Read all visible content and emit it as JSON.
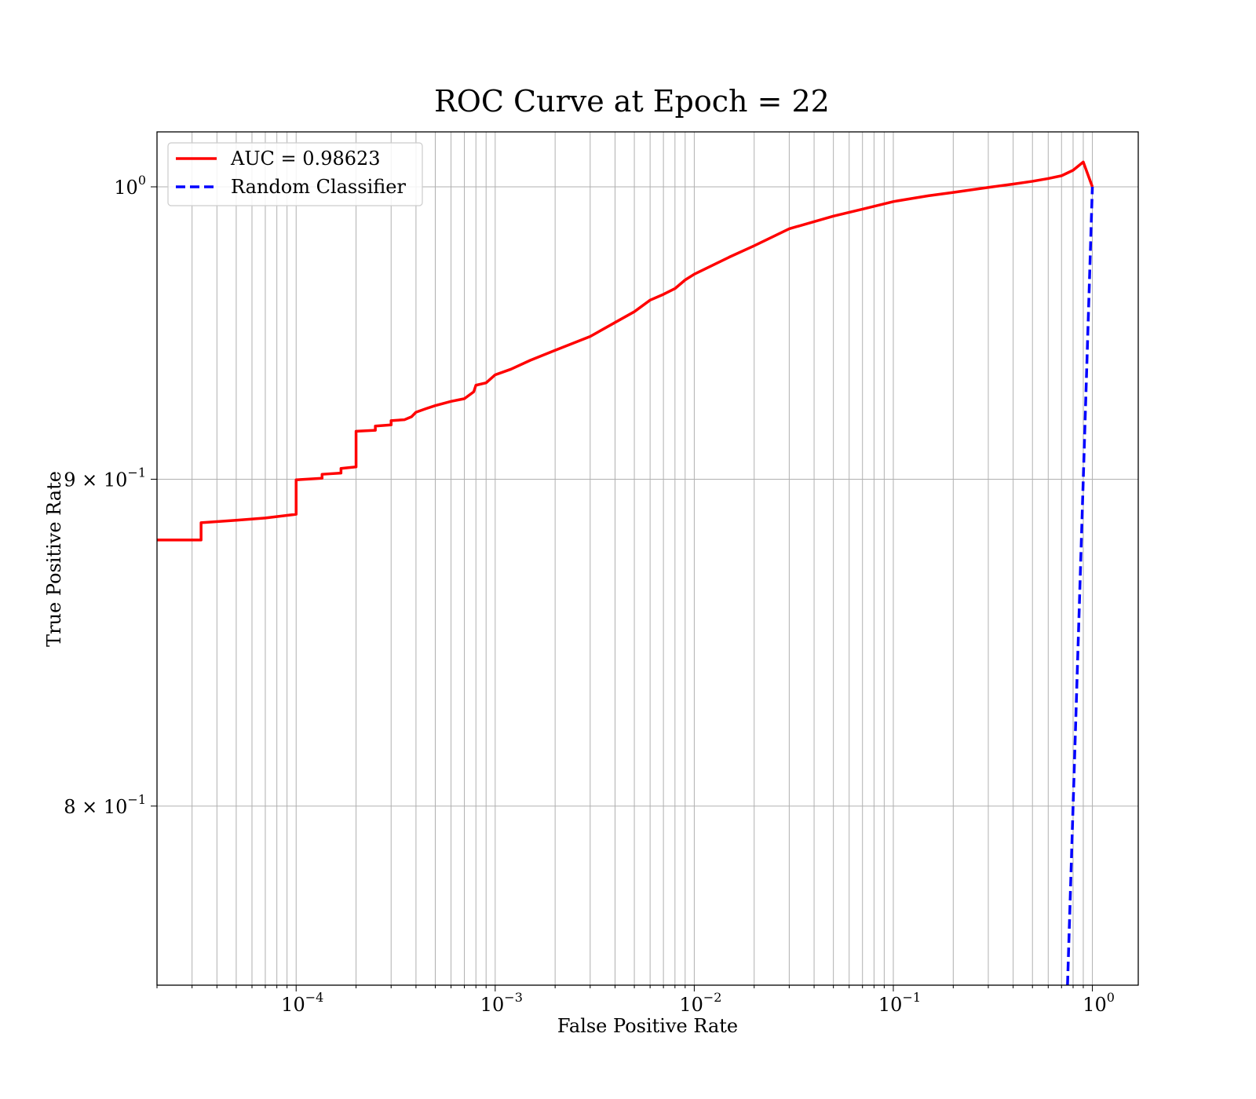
{
  "chart_data": {
    "type": "line",
    "title": "ROC Curve at Epoch = 22",
    "xlabel": "False Positive Rate",
    "ylabel": "True Positive Rate",
    "xscale": "log",
    "yscale": "log",
    "xlim": [
      2e-05,
      1.7
    ],
    "ylim": [
      0.75,
      1.02
    ],
    "grid": "both-major-minor",
    "legend_position": "top-left",
    "x_ticks": [
      {
        "value": 0.0001,
        "base": "10",
        "exp": "−4"
      },
      {
        "value": 0.001,
        "base": "10",
        "exp": "−3"
      },
      {
        "value": 0.01,
        "base": "10",
        "exp": "−2"
      },
      {
        "value": 0.1,
        "base": "10",
        "exp": "−1"
      },
      {
        "value": 1,
        "base": "10",
        "exp": "0"
      }
    ],
    "y_ticks": [
      {
        "value": 1.0,
        "base": "10",
        "exp": "0"
      },
      {
        "value": 0.9,
        "base": "9 × 10",
        "exp": "−1"
      },
      {
        "value": 0.8,
        "base": "8 × 10",
        "exp": "−1"
      }
    ],
    "series": [
      {
        "name": "AUC = 0.98623",
        "color": "#ff0000",
        "style": "solid",
        "x": [
          2e-05,
          3.33e-05,
          3.33e-05,
          5e-05,
          7e-05,
          0.0001,
          0.0001,
          0.000135,
          0.000135,
          0.000168,
          0.000168,
          0.0002,
          0.0002,
          0.00025,
          0.00025,
          0.0003,
          0.0003,
          0.00035,
          0.00038,
          0.0004,
          0.00045,
          0.0005,
          0.0006,
          0.0007,
          0.00078,
          0.0008,
          0.0009,
          0.001,
          0.0012,
          0.0015,
          0.002,
          0.003,
          0.004,
          0.005,
          0.006,
          0.007,
          0.008,
          0.009,
          0.01,
          0.015,
          0.02,
          0.03,
          0.05,
          0.07,
          0.1,
          0.15,
          0.2,
          0.3,
          0.4,
          0.5,
          0.6,
          0.7,
          0.8,
          0.9,
          1.0
        ],
        "y": [
          0.8805,
          0.8805,
          0.886,
          0.8868,
          0.8875,
          0.8887,
          0.8998,
          0.9003,
          0.9016,
          0.902,
          0.9035,
          0.904,
          0.9157,
          0.916,
          0.9174,
          0.9178,
          0.9192,
          0.9195,
          0.9205,
          0.922,
          0.9232,
          0.9242,
          0.9256,
          0.9265,
          0.9288,
          0.931,
          0.9318,
          0.9345,
          0.9364,
          0.9394,
          0.9428,
          0.9475,
          0.9523,
          0.956,
          0.96,
          0.962,
          0.964,
          0.967,
          0.969,
          0.975,
          0.979,
          0.985,
          0.9895,
          0.992,
          0.9947,
          0.9968,
          0.998,
          0.9998,
          1.001,
          1.002,
          1.003,
          1.004,
          1.006,
          1.009,
          1.0
        ]
      },
      {
        "name": "Random Classifier",
        "color": "#0000ff",
        "style": "dashed",
        "x": [
          0.75,
          1.0
        ],
        "y": [
          0.75,
          1.0
        ]
      }
    ]
  }
}
